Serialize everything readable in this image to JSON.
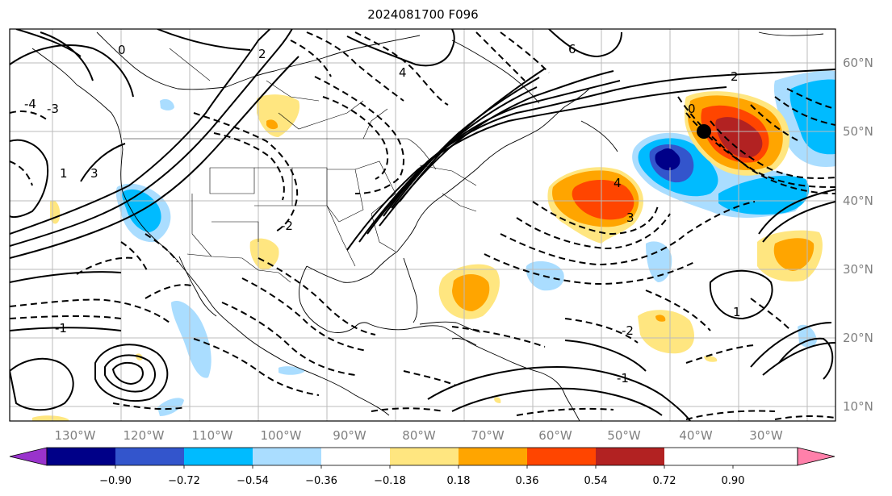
{
  "title": "2024081700 F096",
  "map": {
    "lon_labels": [
      "130°W",
      "120°W",
      "110°W",
      "100°W",
      "90°W",
      "80°W",
      "70°W",
      "60°W",
      "50°W",
      "40°W",
      "30°W"
    ],
    "lat_labels": [
      "60°N",
      "50°N",
      "40°N",
      "30°N",
      "20°N",
      "10°N"
    ],
    "contour_labels": [
      "0",
      "2",
      "4",
      "6",
      "3",
      "1",
      "-1",
      "-2",
      "-3",
      "-4",
      "2",
      "0",
      "1",
      "-1",
      "-2",
      "3",
      "4"
    ]
  },
  "colorbar": {
    "ticks": [
      "−0.90",
      "−0.72",
      "−0.54",
      "−0.36",
      "−0.18",
      "0.18",
      "0.36",
      "0.54",
      "0.72",
      "0.90"
    ],
    "colors": [
      "#9933cc",
      "#000088",
      "#3355cc",
      "#00bbff",
      "#aaddff",
      "#ffffff",
      "#ffe680",
      "#ffa500",
      "#ff4500",
      "#b22222",
      "#ff80aa"
    ]
  }
}
